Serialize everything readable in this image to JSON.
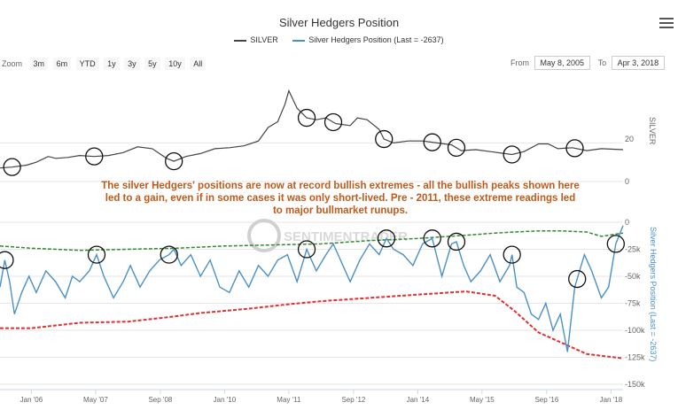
{
  "title": "Silver Hedgers Position",
  "legend": [
    {
      "label": "SILVER",
      "color": "#444444"
    },
    {
      "label": "Silver Hedgers Position (Last = -2637)",
      "color": "#4a90c8"
    }
  ],
  "zoom": {
    "label": "Zoom",
    "buttons": [
      "3m",
      "6m",
      "YTD",
      "1y",
      "3y",
      "5y",
      "10y",
      "All"
    ]
  },
  "range": {
    "from_label": "From",
    "from_value": "May 8, 2005",
    "to_label": "To",
    "to_value": "Apr 3, 2018"
  },
  "annotation": {
    "lines": [
      "The silver Hedgers' positions are now at record bullish extremes - all the bullish peaks shown here",
      "led to a gain, even if in some cases it was only short-lived. Pre - 2011, these extreme readings led",
      "to major bullmarket runups."
    ],
    "color": "#c05a1a"
  },
  "watermark": "SENTIMENTRADER",
  "colors": {
    "silver": "#444444",
    "hedgers": "#4a90c8",
    "upper_band": "#2e8b2e",
    "lower_band": "#e03030",
    "circle": "#111111",
    "axis_text": "#666666",
    "grid": "#e6e6e6"
  },
  "chart_data": [
    {
      "type": "line",
      "title": "SILVER",
      "ylabel": "SILVER",
      "ylim": [
        0,
        50
      ],
      "y_ticks": [
        "20",
        "0"
      ],
      "x_range": [
        2005.35,
        2018.25
      ],
      "series": [
        {
          "name": "SILVER",
          "x": [
            2005.35,
            2005.6,
            2005.9,
            2006.1,
            2006.35,
            2006.5,
            2006.75,
            2007.0,
            2007.3,
            2007.6,
            2007.9,
            2008.2,
            2008.5,
            2008.8,
            2008.95,
            2009.2,
            2009.5,
            2009.8,
            2010.1,
            2010.4,
            2010.7,
            2010.9,
            2011.1,
            2011.25,
            2011.33,
            2011.5,
            2011.7,
            2011.9,
            2012.1,
            2012.3,
            2012.6,
            2012.75,
            2012.95,
            2013.2,
            2013.3,
            2013.5,
            2013.8,
            2014.1,
            2014.4,
            2014.7,
            2014.9,
            2015.2,
            2015.5,
            2015.8,
            2015.95,
            2016.2,
            2016.5,
            2016.7,
            2016.9,
            2017.2,
            2017.5,
            2017.8,
            2018.0,
            2018.25
          ],
          "values": [
            7,
            7.5,
            8.5,
            10,
            13,
            12,
            12.5,
            13.5,
            13,
            13.5,
            15,
            18,
            17,
            12,
            10.5,
            13,
            14.5,
            17,
            17.5,
            18.5,
            21,
            28,
            31,
            40,
            47,
            38,
            33,
            32,
            33,
            30,
            29,
            33,
            32,
            27,
            22,
            20,
            21,
            21,
            20,
            19,
            16,
            16.5,
            15.5,
            14.5,
            14,
            15.5,
            19.5,
            19.5,
            17,
            17.5,
            16,
            17,
            16.8,
            16.5
          ]
        }
      ],
      "marked_peaks": [
        2005.6,
        2007.3,
        2008.95,
        2011.7,
        2012.25,
        2013.3,
        2014.3,
        2014.8,
        2015.95,
        2017.25
      ]
    },
    {
      "type": "line",
      "title": "Silver Hedgers Position (Last = -2637)",
      "ylabel": "Silver Hedgers Position (Last = -2637)",
      "ylim": [
        -150000,
        0
      ],
      "y_ticks": [
        "0",
        "-25k",
        "-50k",
        "-75k",
        "-100k",
        "-125k",
        "-150k"
      ],
      "x_ticks": [
        "Jan '06",
        "May '07",
        "Sep '08",
        "Jan '10",
        "May '11",
        "Sep '12",
        "Jan '14",
        "May '15",
        "Sep '16",
        "Jan '18"
      ],
      "x_tick_values": [
        2006.0,
        2007.33,
        2008.67,
        2010.0,
        2011.33,
        2012.67,
        2014.0,
        2015.33,
        2016.67,
        2018.0
      ],
      "x_range": [
        2005.35,
        2018.25
      ],
      "series": [
        {
          "name": "Silver Hedgers Position",
          "x": [
            2005.35,
            2005.45,
            2005.55,
            2005.65,
            2005.8,
            2005.95,
            2006.1,
            2006.3,
            2006.5,
            2006.7,
            2006.85,
            2007.0,
            2007.2,
            2007.35,
            2007.5,
            2007.7,
            2007.9,
            2008.05,
            2008.25,
            2008.45,
            2008.65,
            2008.85,
            2008.95,
            2009.1,
            2009.3,
            2009.5,
            2009.7,
            2009.9,
            2010.1,
            2010.3,
            2010.5,
            2010.7,
            2010.9,
            2011.1,
            2011.3,
            2011.5,
            2011.7,
            2011.9,
            2012.1,
            2012.25,
            2012.45,
            2012.6,
            2012.8,
            2013.0,
            2013.2,
            2013.35,
            2013.5,
            2013.7,
            2013.9,
            2014.1,
            2014.3,
            2014.5,
            2014.7,
            2014.8,
            2014.95,
            2015.1,
            2015.3,
            2015.5,
            2015.7,
            2015.9,
            2015.95,
            2016.05,
            2016.2,
            2016.35,
            2016.5,
            2016.65,
            2016.8,
            2016.95,
            2017.1,
            2017.25,
            2017.45,
            2017.6,
            2017.8,
            2017.95,
            2018.1,
            2018.25
          ],
          "values": [
            -60000,
            -35000,
            -55000,
            -85000,
            -65000,
            -50000,
            -65000,
            -45000,
            -55000,
            -70000,
            -50000,
            -55000,
            -45000,
            -30000,
            -50000,
            -70000,
            -55000,
            -40000,
            -60000,
            -45000,
            -35000,
            -30000,
            -25000,
            -40000,
            -30000,
            -50000,
            -35000,
            -60000,
            -65000,
            -45000,
            -60000,
            -40000,
            -50000,
            -35000,
            -30000,
            -55000,
            -25000,
            -45000,
            -30000,
            -20000,
            -40000,
            -55000,
            -35000,
            -20000,
            -30000,
            -15000,
            -25000,
            -30000,
            -40000,
            -20000,
            -15000,
            -50000,
            -20000,
            -18000,
            -40000,
            -55000,
            -45000,
            -30000,
            -55000,
            -40000,
            -30000,
            -60000,
            -65000,
            -85000,
            -90000,
            -75000,
            -100000,
            -85000,
            -120000,
            -60000,
            -30000,
            -45000,
            -70000,
            -60000,
            -20000,
            -3000
          ]
        },
        {
          "name": "Upper band",
          "x": [
            2005.35,
            2006.0,
            2007.0,
            2008.0,
            2009.0,
            2010.0,
            2011.0,
            2012.0,
            2013.0,
            2014.0,
            2015.0,
            2015.6,
            2016.0,
            2016.5,
            2017.0,
            2017.5,
            2017.8,
            2018.25
          ],
          "values": [
            -22000,
            -24000,
            -26000,
            -25000,
            -24000,
            -22000,
            -21000,
            -20000,
            -17000,
            -15000,
            -12000,
            -10000,
            -9000,
            -8000,
            -8000,
            -9000,
            -13000,
            -10000
          ]
        },
        {
          "name": "Lower band",
          "x": [
            2005.35,
            2006.0,
            2007.0,
            2008.0,
            2008.8,
            2009.5,
            2010.5,
            2011.3,
            2012.0,
            2013.0,
            2014.0,
            2015.0,
            2015.6,
            2016.0,
            2016.5,
            2017.0,
            2017.5,
            2018.25
          ],
          "values": [
            -98000,
            -98000,
            -93000,
            -92000,
            -88000,
            -84000,
            -80000,
            -76000,
            -73000,
            -70000,
            -67000,
            -64000,
            -68000,
            -82000,
            -102000,
            -112000,
            -122000,
            -126000
          ]
        }
      ],
      "marked_peaks": [
        2005.45,
        2007.35,
        2008.85,
        2011.7,
        2013.35,
        2014.3,
        2014.8,
        2015.95,
        2017.3,
        2018.1
      ]
    }
  ]
}
